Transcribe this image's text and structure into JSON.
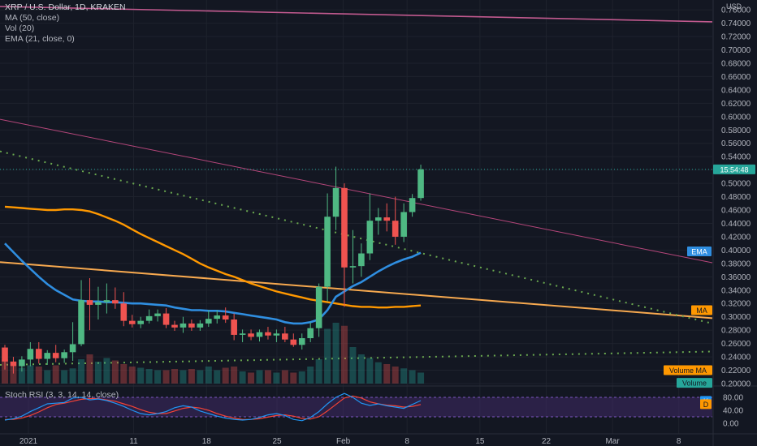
{
  "chart_data": {
    "type": "candlestick",
    "symbol_line": "XRP / U.S. Dollar, 1D, KRAKEN",
    "indicators": [
      "MA (50, close)",
      "Vol (20)",
      "EMA (21, close, 0)"
    ],
    "currency": "USD",
    "countdown": "15:54:48",
    "price_ticks": [
      "0.76000",
      "0.74000",
      "0.72000",
      "0.70000",
      "0.68000",
      "0.66000",
      "0.64000",
      "0.62000",
      "0.60000",
      "0.58000",
      "0.56000",
      "0.54000",
      "0.52000",
      "0.50000",
      "0.48000",
      "0.46000",
      "0.44000",
      "0.42000",
      "0.40000",
      "0.38000",
      "0.36000",
      "0.34000",
      "0.32000",
      "0.30000",
      "0.28000",
      "0.26000",
      "0.24000",
      "0.22000",
      "0.20000"
    ],
    "time_ticks": [
      "2021",
      "11",
      "18",
      "25",
      "Feb",
      "8",
      "15",
      "22",
      "Mar",
      "8"
    ],
    "y_range": [
      0.2,
      0.765
    ],
    "candles": [
      {
        "o": 0.254,
        "h": 0.258,
        "l": 0.221,
        "c": 0.233
      },
      {
        "o": 0.233,
        "h": 0.24,
        "l": 0.215,
        "c": 0.226
      },
      {
        "o": 0.226,
        "h": 0.241,
        "l": 0.218,
        "c": 0.236
      },
      {
        "o": 0.236,
        "h": 0.262,
        "l": 0.226,
        "c": 0.252
      },
      {
        "o": 0.252,
        "h": 0.262,
        "l": 0.23,
        "c": 0.237
      },
      {
        "o": 0.237,
        "h": 0.25,
        "l": 0.228,
        "c": 0.246
      },
      {
        "o": 0.246,
        "h": 0.258,
        "l": 0.232,
        "c": 0.238
      },
      {
        "o": 0.238,
        "h": 0.251,
        "l": 0.231,
        "c": 0.247
      },
      {
        "o": 0.247,
        "h": 0.292,
        "l": 0.234,
        "c": 0.259
      },
      {
        "o": 0.259,
        "h": 0.355,
        "l": 0.256,
        "c": 0.325
      },
      {
        "o": 0.325,
        "h": 0.358,
        "l": 0.28,
        "c": 0.318
      },
      {
        "o": 0.318,
        "h": 0.345,
        "l": 0.296,
        "c": 0.322
      },
      {
        "o": 0.322,
        "h": 0.35,
        "l": 0.305,
        "c": 0.325
      },
      {
        "o": 0.325,
        "h": 0.344,
        "l": 0.312,
        "c": 0.32
      },
      {
        "o": 0.32,
        "h": 0.337,
        "l": 0.286,
        "c": 0.294
      },
      {
        "o": 0.294,
        "h": 0.303,
        "l": 0.284,
        "c": 0.289
      },
      {
        "o": 0.289,
        "h": 0.3,
        "l": 0.283,
        "c": 0.294
      },
      {
        "o": 0.294,
        "h": 0.311,
        "l": 0.29,
        "c": 0.301
      },
      {
        "o": 0.301,
        "h": 0.311,
        "l": 0.293,
        "c": 0.305
      },
      {
        "o": 0.305,
        "h": 0.313,
        "l": 0.283,
        "c": 0.288
      },
      {
        "o": 0.288,
        "h": 0.294,
        "l": 0.279,
        "c": 0.284
      },
      {
        "o": 0.284,
        "h": 0.3,
        "l": 0.276,
        "c": 0.29
      },
      {
        "o": 0.29,
        "h": 0.296,
        "l": 0.279,
        "c": 0.284
      },
      {
        "o": 0.284,
        "h": 0.295,
        "l": 0.279,
        "c": 0.29
      },
      {
        "o": 0.29,
        "h": 0.31,
        "l": 0.285,
        "c": 0.297
      },
      {
        "o": 0.297,
        "h": 0.31,
        "l": 0.29,
        "c": 0.302
      },
      {
        "o": 0.302,
        "h": 0.314,
        "l": 0.291,
        "c": 0.296
      },
      {
        "o": 0.296,
        "h": 0.305,
        "l": 0.265,
        "c": 0.273
      },
      {
        "o": 0.273,
        "h": 0.281,
        "l": 0.262,
        "c": 0.275
      },
      {
        "o": 0.275,
        "h": 0.281,
        "l": 0.265,
        "c": 0.27
      },
      {
        "o": 0.27,
        "h": 0.281,
        "l": 0.263,
        "c": 0.277
      },
      {
        "o": 0.277,
        "h": 0.285,
        "l": 0.266,
        "c": 0.272
      },
      {
        "o": 0.272,
        "h": 0.281,
        "l": 0.262,
        "c": 0.275
      },
      {
        "o": 0.275,
        "h": 0.285,
        "l": 0.262,
        "c": 0.266
      },
      {
        "o": 0.266,
        "h": 0.275,
        "l": 0.255,
        "c": 0.258
      },
      {
        "o": 0.258,
        "h": 0.275,
        "l": 0.251,
        "c": 0.268
      },
      {
        "o": 0.268,
        "h": 0.292,
        "l": 0.262,
        "c": 0.283
      },
      {
        "o": 0.283,
        "h": 0.35,
        "l": 0.27,
        "c": 0.345
      },
      {
        "o": 0.345,
        "h": 0.485,
        "l": 0.323,
        "c": 0.45
      },
      {
        "o": 0.45,
        "h": 0.525,
        "l": 0.43,
        "c": 0.493
      },
      {
        "o": 0.493,
        "h": 0.5,
        "l": 0.315,
        "c": 0.374
      },
      {
        "o": 0.374,
        "h": 0.43,
        "l": 0.35,
        "c": 0.376
      },
      {
        "o": 0.376,
        "h": 0.41,
        "l": 0.36,
        "c": 0.395
      },
      {
        "o": 0.395,
        "h": 0.485,
        "l": 0.385,
        "c": 0.444
      },
      {
        "o": 0.444,
        "h": 0.463,
        "l": 0.423,
        "c": 0.449
      },
      {
        "o": 0.449,
        "h": 0.47,
        "l": 0.428,
        "c": 0.444
      },
      {
        "o": 0.444,
        "h": 0.48,
        "l": 0.408,
        "c": 0.42
      },
      {
        "o": 0.42,
        "h": 0.47,
        "l": 0.412,
        "c": 0.457
      },
      {
        "o": 0.457,
        "h": 0.484,
        "l": 0.45,
        "c": 0.478
      },
      {
        "o": 0.478,
        "h": 0.528,
        "l": 0.474,
        "c": 0.521
      }
    ],
    "volume": [
      40,
      28,
      26,
      30,
      28,
      22,
      30,
      22,
      25,
      40,
      48,
      36,
      42,
      38,
      32,
      28,
      26,
      24,
      22,
      22,
      24,
      22,
      24,
      22,
      28,
      22,
      26,
      28,
      20,
      18,
      22,
      22,
      18,
      22,
      18,
      20,
      28,
      40,
      90,
      100,
      95,
      60,
      48,
      42,
      35,
      32,
      28,
      25,
      22,
      18
    ],
    "ema21": [
      0.41,
      0.397,
      0.384,
      0.372,
      0.36,
      0.349,
      0.34,
      0.333,
      0.326,
      0.324,
      0.323,
      0.323,
      0.322,
      0.322,
      0.321,
      0.32,
      0.32,
      0.319,
      0.318,
      0.317,
      0.314,
      0.312,
      0.31,
      0.31,
      0.309,
      0.309,
      0.308,
      0.306,
      0.304,
      0.302,
      0.3,
      0.298,
      0.296,
      0.292,
      0.29,
      0.29,
      0.292,
      0.296,
      0.31,
      0.33,
      0.338,
      0.346,
      0.352,
      0.36,
      0.368,
      0.375,
      0.381,
      0.386,
      0.39,
      0.396
    ],
    "ma50": [
      0.465,
      0.464,
      0.463,
      0.462,
      0.461,
      0.46,
      0.46,
      0.461,
      0.461,
      0.46,
      0.458,
      0.454,
      0.449,
      0.444,
      0.438,
      0.431,
      0.424,
      0.418,
      0.412,
      0.406,
      0.4,
      0.394,
      0.387,
      0.38,
      0.374,
      0.369,
      0.364,
      0.36,
      0.355,
      0.35,
      0.346,
      0.342,
      0.338,
      0.335,
      0.332,
      0.329,
      0.326,
      0.324,
      0.322,
      0.32,
      0.318,
      0.316,
      0.315,
      0.315,
      0.314,
      0.314,
      0.315,
      0.315,
      0.316,
      0.317
    ],
    "stoch_ticks": [
      "80.00",
      "40.00",
      "0.00"
    ],
    "stoch_k": [
      10,
      14,
      22,
      36,
      48,
      60,
      62,
      64,
      78,
      80,
      72,
      75,
      70,
      62,
      52,
      40,
      30,
      26,
      30,
      36,
      48,
      54,
      50,
      38,
      30,
      22,
      16,
      12,
      10,
      12,
      18,
      26,
      30,
      24,
      12,
      8,
      18,
      36,
      60,
      80,
      92,
      80,
      62,
      55,
      60,
      54,
      50,
      46,
      58,
      70
    ],
    "stoch_d": [
      12,
      12,
      16,
      24,
      35,
      48,
      58,
      62,
      68,
      74,
      76,
      76,
      72,
      68,
      60,
      52,
      42,
      34,
      30,
      30,
      38,
      46,
      50,
      47,
      40,
      30,
      22,
      16,
      12,
      12,
      14,
      19,
      24,
      26,
      22,
      15,
      13,
      20,
      38,
      58,
      78,
      84,
      78,
      66,
      60,
      56,
      54,
      50,
      52,
      58
    ],
    "labels": {
      "ema": "EMA",
      "ma": "MA",
      "volume_ma": "Volume MA",
      "volume": "Volume",
      "stoch_title": "Stoch RSI (3, 3, 14, 14, close)",
      "k": "K",
      "d": "D"
    },
    "colors": {
      "up": "#26a69a",
      "up_candle": "#4fb883",
      "down": "#ef5350",
      "ema": "#2f8ee0",
      "ma": "#ff9800",
      "trend_orange": "#f7a94f",
      "trend_pink": "#b5467a",
      "trend_pink_upper": "#c25a8f",
      "dotted_green": "#6aa84f",
      "stoch_k": "#2196f3",
      "stoch_d": "#f44336",
      "stoch_band": "#3f2a66"
    }
  }
}
